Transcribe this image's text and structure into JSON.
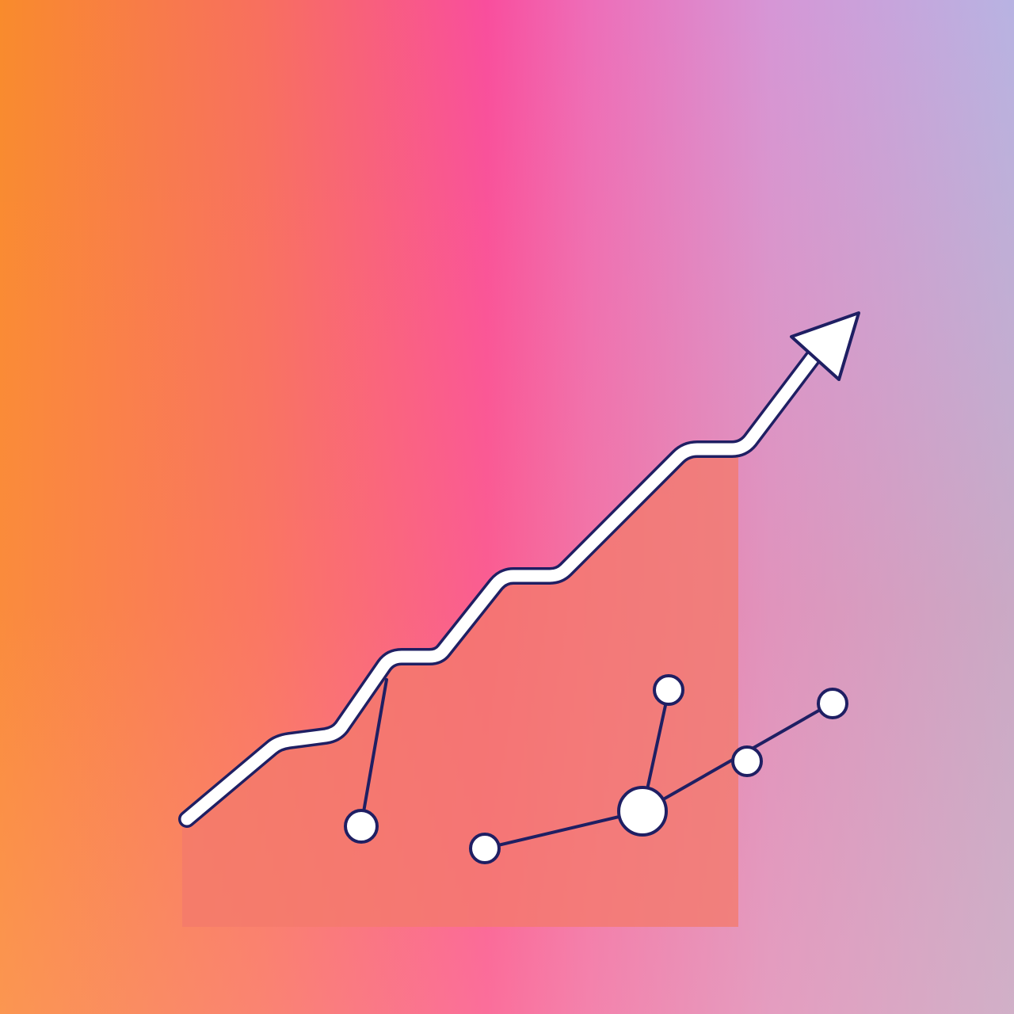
{
  "colors": {
    "gradient_start": "#f98b2c",
    "gradient_mid": "#f94e9d",
    "gradient_end": "#b8b3e2",
    "panel_fill": "#f47a6b",
    "line_white": "#ffffff",
    "outline_navy": "#1f1f63"
  },
  "icons": {
    "arrow": "upward-trend-arrow-icon",
    "nodes": "network-node-icon"
  }
}
